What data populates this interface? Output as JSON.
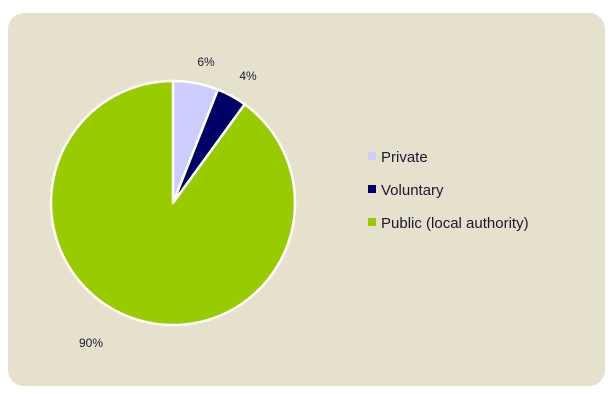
{
  "chart_data": {
    "type": "pie",
    "title": "",
    "slices": [
      {
        "label": "Private",
        "value": 6,
        "value_label": "6%",
        "color": "#ccccff"
      },
      {
        "label": "Voluntary",
        "value": 4,
        "value_label": "4%",
        "color": "#000066"
      },
      {
        "label": "Public (local authority)",
        "value": 90,
        "value_label": "90%",
        "color": "#99cc00"
      }
    ],
    "start": "top, clockwise",
    "legend": "right",
    "background": "#e5e1cc",
    "border_color": "#ffffff"
  }
}
